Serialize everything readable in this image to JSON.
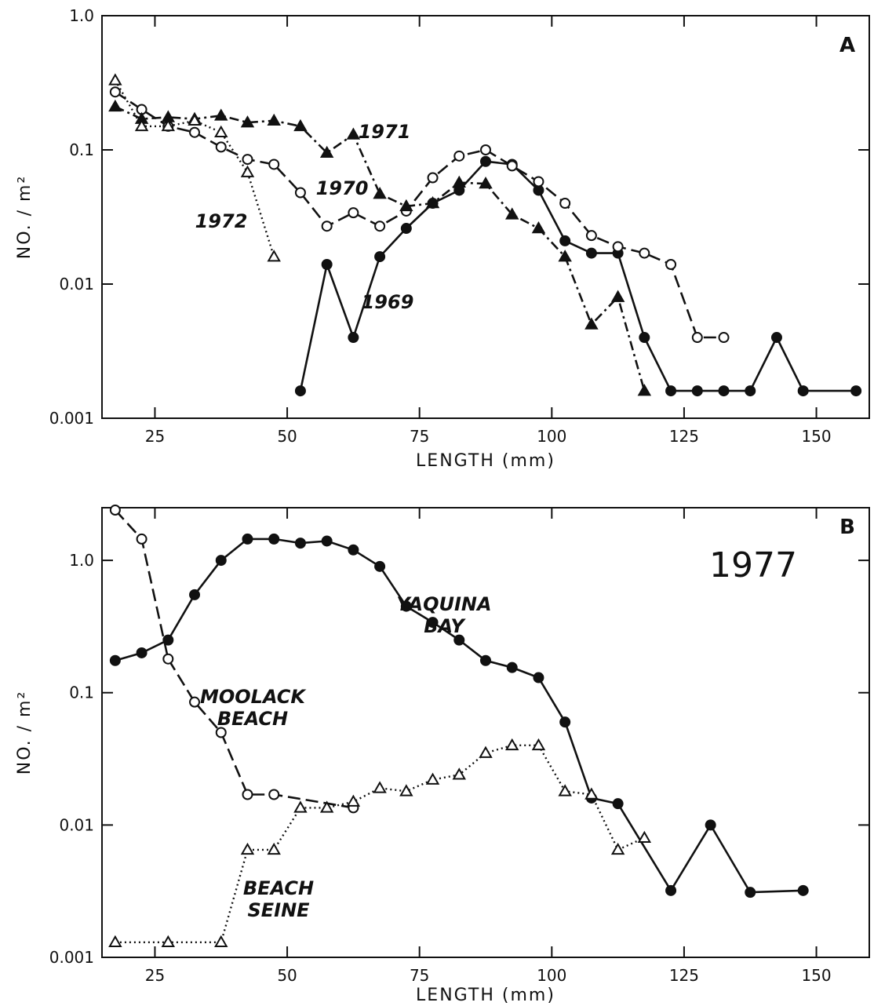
{
  "chart_data": [
    {
      "type": "line",
      "panel_label": "A",
      "xlabel": "LENGTH (mm)",
      "ylabel": "NO. / m²",
      "xlim": [
        15,
        160
      ],
      "ylim": [
        0.001,
        1.0
      ],
      "y_scale": "log",
      "x_ticks": [
        25,
        50,
        75,
        100,
        125,
        150
      ],
      "y_ticks": [
        {
          "value": 0.001,
          "label": "0.001"
        },
        {
          "value": 0.01,
          "label": "0.01"
        },
        {
          "value": 0.1,
          "label": "0.1"
        },
        {
          "value": 1.0,
          "label": "1.0"
        }
      ],
      "grid": false,
      "series": [
        {
          "name": "1969",
          "marker": "filled-circle",
          "line": "solid",
          "x": [
            52.5,
            57.5,
            62.5,
            67.5,
            72.5,
            77.5,
            82.5,
            87.5,
            92.5,
            97.5,
            102.5,
            107.5,
            112.5,
            117.5,
            122.5,
            127.5,
            132.5,
            137.5,
            142.5,
            147.5,
            157.5
          ],
          "y": [
            0.0016,
            0.014,
            0.004,
            0.016,
            0.026,
            0.04,
            0.05,
            0.082,
            0.078,
            0.05,
            0.021,
            0.017,
            0.017,
            0.004,
            0.0016,
            0.0016,
            0.0016,
            0.0016,
            0.004,
            0.0016,
            0.0016
          ]
        },
        {
          "name": "1970",
          "marker": "open-circle",
          "line": "dashed",
          "x": [
            17.5,
            22.5,
            27.5,
            32.5,
            37.5,
            42.5,
            47.5,
            52.5,
            57.5,
            62.5,
            67.5,
            72.5,
            77.5,
            82.5,
            87.5,
            92.5,
            97.5,
            102.5,
            107.5,
            112.5,
            117.5,
            122.5,
            127.5,
            132.5
          ],
          "y": [
            0.27,
            0.2,
            0.15,
            0.135,
            0.105,
            0.085,
            0.078,
            0.048,
            0.027,
            0.034,
            0.027,
            0.035,
            0.062,
            0.09,
            0.1,
            0.076,
            0.058,
            0.04,
            0.023,
            0.019,
            0.017,
            0.014,
            0.004,
            0.004
          ]
        },
        {
          "name": "1971",
          "marker": "filled-triangle",
          "line": "dash-dot",
          "x": [
            17.5,
            22.5,
            27.5,
            32.5,
            37.5,
            42.5,
            47.5,
            52.5,
            57.5,
            62.5,
            67.5,
            72.5,
            77.5,
            82.5,
            87.5,
            92.5,
            97.5,
            102.5,
            107.5,
            112.5,
            117.5
          ],
          "y": [
            0.21,
            0.17,
            0.175,
            0.17,
            0.18,
            0.16,
            0.165,
            0.15,
            0.095,
            0.13,
            0.047,
            0.038,
            0.04,
            0.057,
            0.056,
            0.033,
            0.026,
            0.016,
            0.005,
            0.008,
            0.0016
          ]
        },
        {
          "name": "1972",
          "marker": "open-triangle",
          "line": "dotted",
          "x": [
            17.5,
            22.5,
            27.5,
            32.5,
            37.5,
            42.5,
            47.5
          ],
          "y": [
            0.33,
            0.15,
            0.15,
            0.165,
            0.135,
            0.068,
            0.016
          ]
        }
      ],
      "annotations": [
        "1971",
        "1970",
        "1972",
        "1969"
      ]
    },
    {
      "type": "line",
      "panel_label": "B",
      "title": "1977",
      "xlabel": "LENGTH (mm)",
      "ylabel": "NO. / m²",
      "xlim": [
        15,
        160
      ],
      "ylim": [
        0.001,
        2.5
      ],
      "y_scale": "log",
      "x_ticks": [
        25,
        50,
        75,
        100,
        125,
        150
      ],
      "y_ticks": [
        {
          "value": 0.001,
          "label": "0.001"
        },
        {
          "value": 0.01,
          "label": "0.01"
        },
        {
          "value": 0.1,
          "label": "0.1"
        },
        {
          "value": 1.0,
          "label": "1.0"
        }
      ],
      "grid": false,
      "series": [
        {
          "name": "YAQUINA BAY",
          "marker": "filled-circle",
          "line": "solid",
          "x": [
            17.5,
            22.5,
            27.5,
            32.5,
            37.5,
            42.5,
            47.5,
            52.5,
            57.5,
            62.5,
            67.5,
            72.5,
            77.5,
            82.5,
            87.5,
            92.5,
            97.5,
            102.5,
            107.5,
            112.5,
            122.5,
            130,
            137.5,
            147.5
          ],
          "y": [
            0.175,
            0.2,
            0.25,
            0.55,
            1.0,
            1.45,
            1.45,
            1.35,
            1.4,
            1.2,
            0.9,
            0.45,
            0.34,
            0.25,
            0.175,
            0.155,
            0.13,
            0.06,
            0.016,
            0.0145,
            0.0032,
            0.01,
            0.0031,
            0.0032
          ]
        },
        {
          "name": "MOOLACK BEACH",
          "marker": "open-circle",
          "line": "dashed",
          "x": [
            17.5,
            22.5,
            27.5,
            32.5,
            37.5,
            42.5,
            47.5,
            62.5
          ],
          "y": [
            2.4,
            1.45,
            0.18,
            0.085,
            0.05,
            0.017,
            0.017,
            0.0135
          ]
        },
        {
          "name": "BEACH SEINE",
          "marker": "open-triangle",
          "line": "dotted",
          "x": [
            17.5,
            27.5,
            37.5,
            42.5,
            47.5,
            52.5,
            57.5,
            62.5,
            67.5,
            72.5,
            77.5,
            82.5,
            87.5,
            92.5,
            97.5,
            102.5,
            107.5,
            112.5,
            117.5
          ],
          "y": [
            0.0013,
            0.0013,
            0.0013,
            0.0065,
            0.0065,
            0.0135,
            0.0135,
            0.015,
            0.019,
            0.018,
            0.022,
            0.024,
            0.035,
            0.04,
            0.04,
            0.018,
            0.017,
            0.0065,
            0.008
          ]
        }
      ],
      "annotations": [
        "YAQUINA BAY",
        "MOOLACK BEACH",
        "BEACH SEINE"
      ]
    }
  ]
}
